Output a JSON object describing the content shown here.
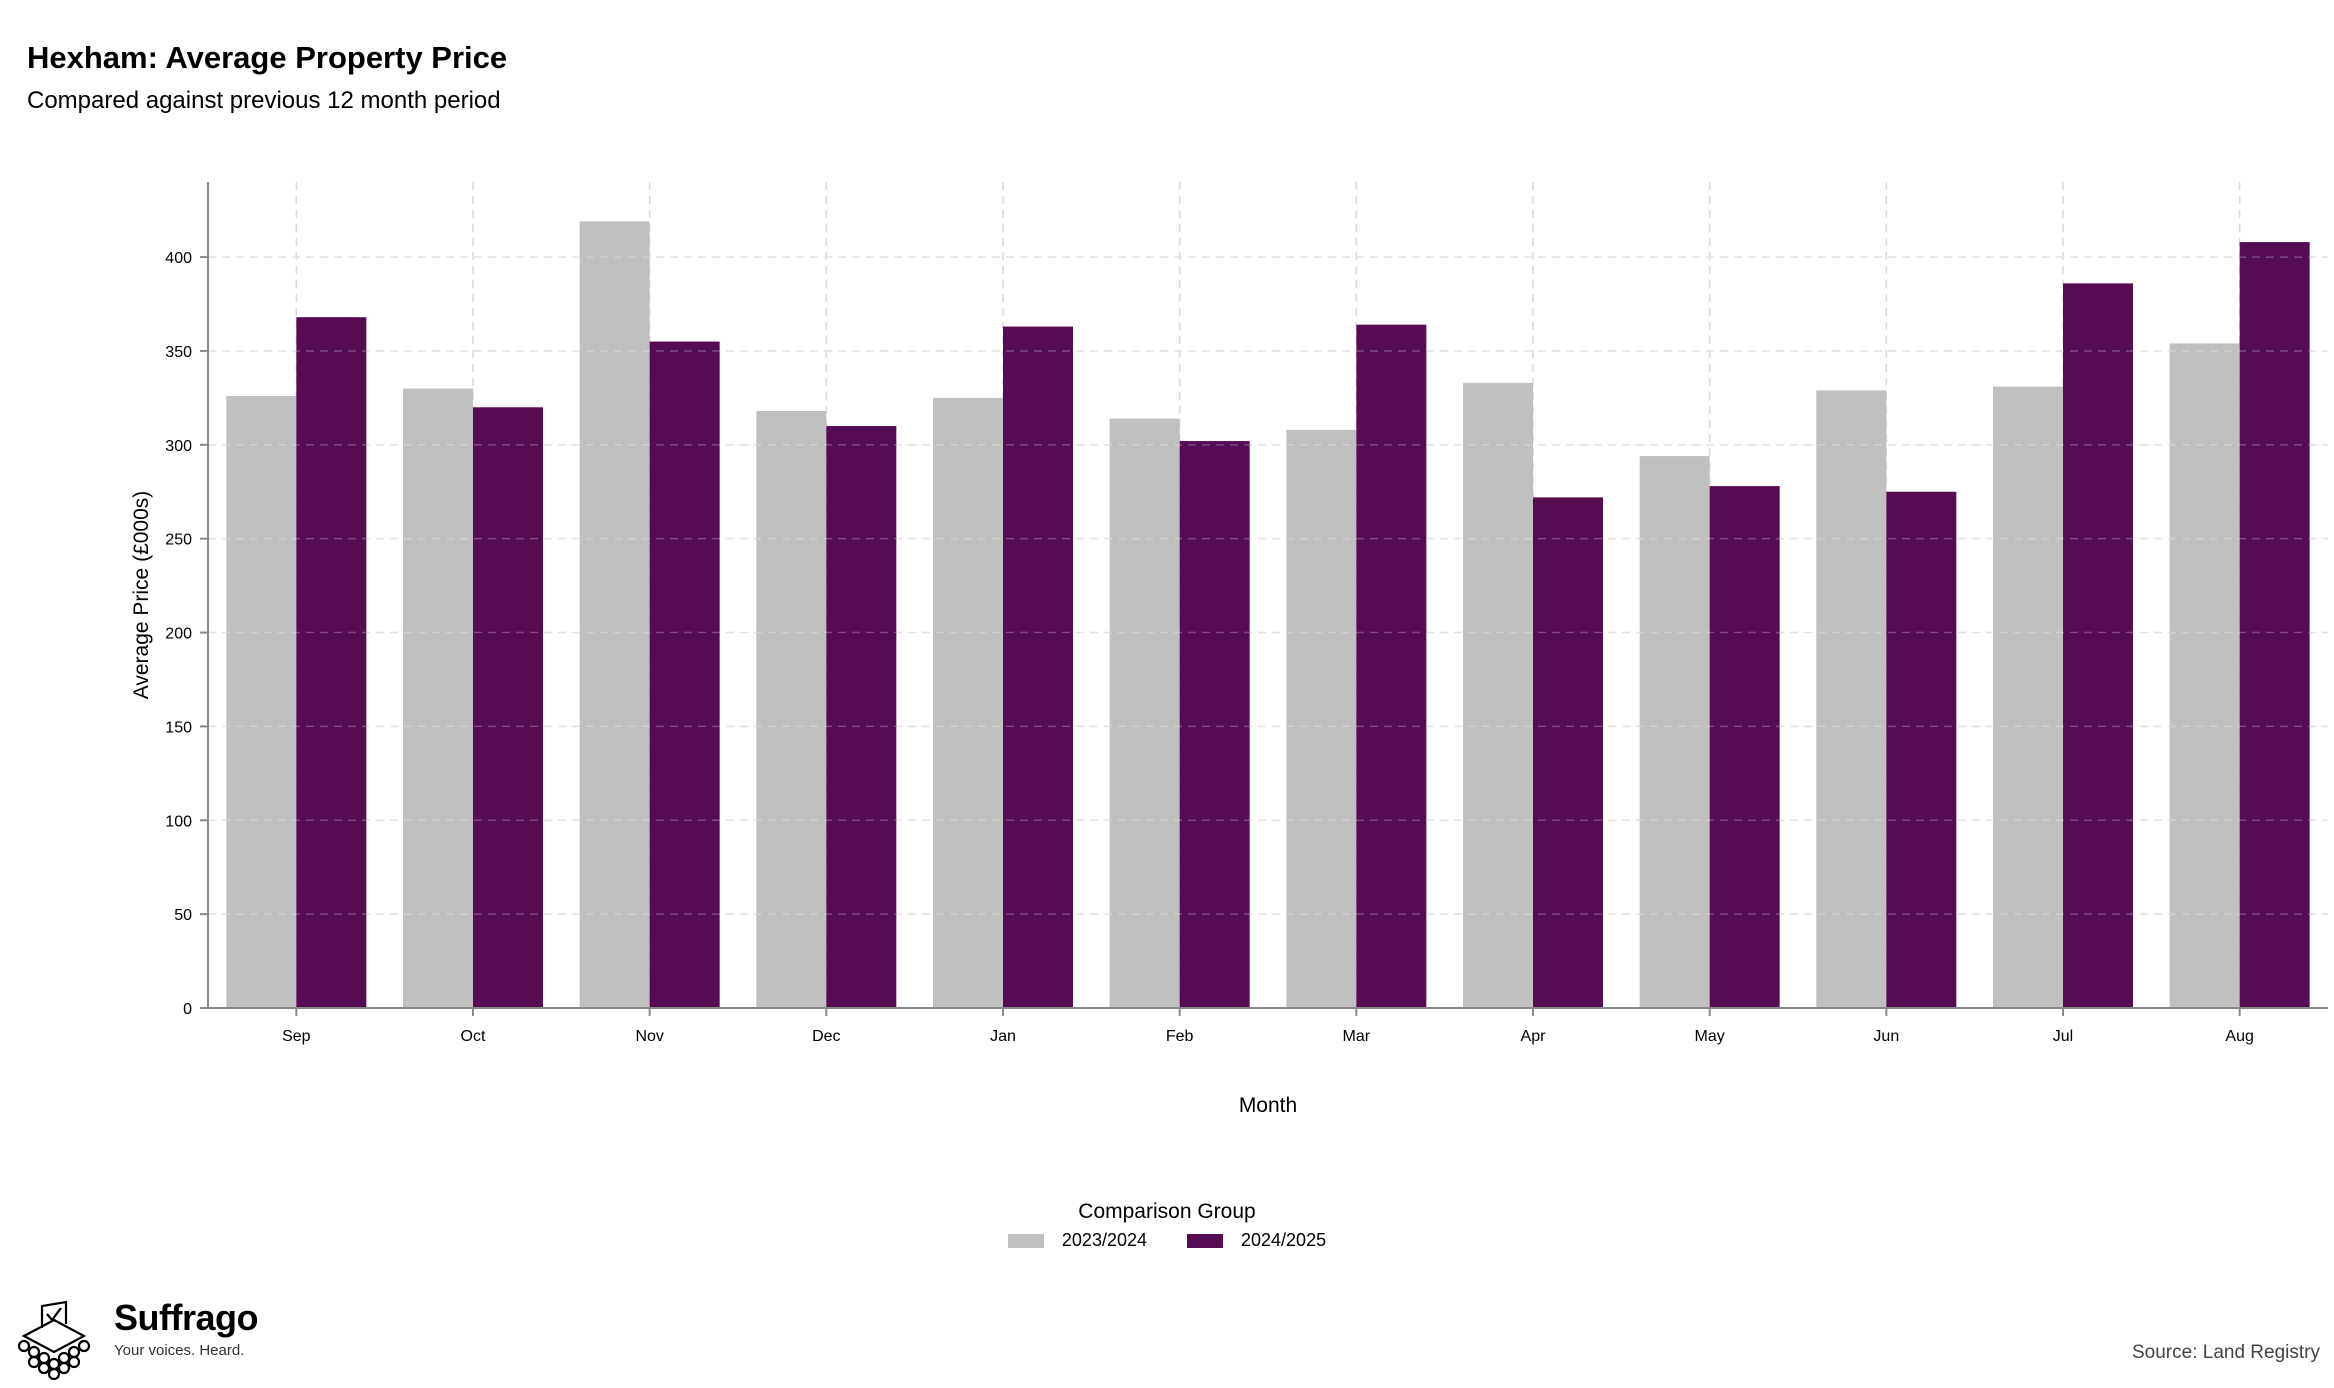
{
  "header": {
    "title": "Hexham: Average Property Price",
    "subtitle": "Compared against previous 12 month period"
  },
  "legend": {
    "title": "Comparison Group",
    "items": [
      "2023/2024",
      "2024/2025"
    ]
  },
  "footer": {
    "brand": "Suffrago",
    "tagline": "Your voices. Heard.",
    "source": "Source: Land Registry"
  },
  "colors": {
    "series_2023": "#c0c0c0",
    "series_2024": "#560c52",
    "grid": "#d9d9d9",
    "axis": "#888888"
  },
  "chart_data": {
    "type": "bar",
    "title": "Hexham: Average Property Price",
    "subtitle": "Compared against previous 12 month period",
    "xlabel": "Month",
    "ylabel": "Average Price (£000s)",
    "categories": [
      "Sep",
      "Oct",
      "Nov",
      "Dec",
      "Jan",
      "Feb",
      "Mar",
      "Apr",
      "May",
      "Jun",
      "Jul",
      "Aug"
    ],
    "series": [
      {
        "name": "2023/2024",
        "values": [
          326,
          330,
          419,
          318,
          325,
          314,
          308,
          333,
          294,
          329,
          331,
          354
        ]
      },
      {
        "name": "2024/2025",
        "values": [
          368,
          320,
          355,
          310,
          363,
          302,
          364,
          272,
          278,
          275,
          386,
          408
        ]
      }
    ],
    "ylim": [
      0,
      440
    ],
    "yticks": [
      0,
      50,
      100,
      150,
      200,
      250,
      300,
      350,
      400
    ],
    "grid": true,
    "legend_position": "bottom"
  }
}
